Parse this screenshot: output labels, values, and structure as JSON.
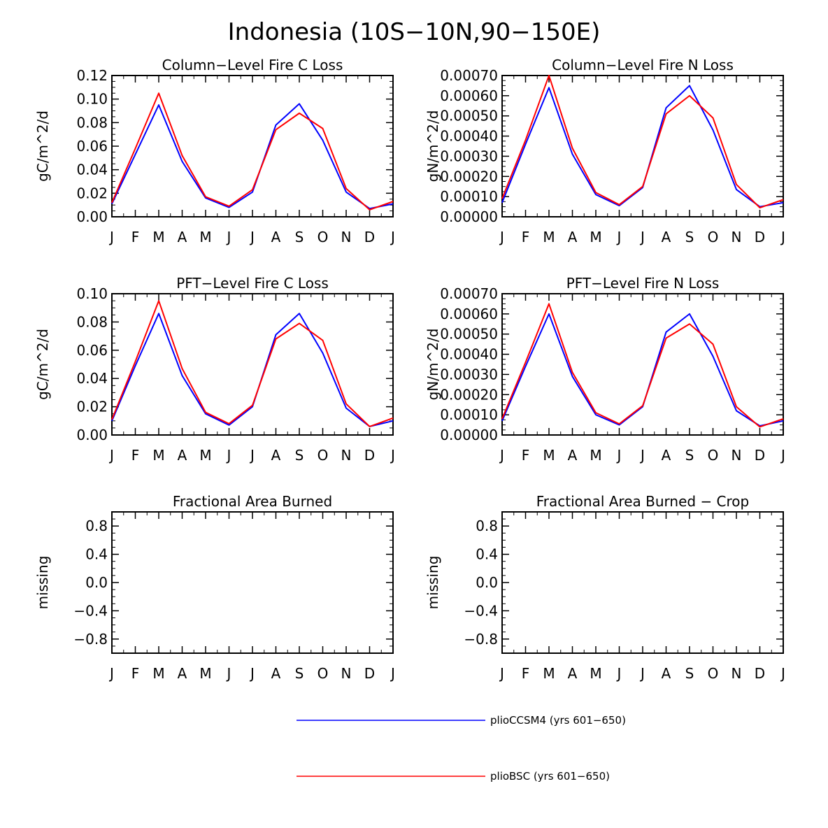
{
  "title": "Indonesia (10S-10N,90-150E)",
  "colors": {
    "series_1": "#0000ff",
    "series_2": "#ff0000",
    "axis": "#000000"
  },
  "legend": [
    {
      "name": "plioCCSM4 (yrs 601-650)",
      "color": "#0000ff"
    },
    {
      "name": "plioBSC (yrs 601-650)",
      "color": "#ff0000"
    }
  ],
  "chart_data": [
    {
      "type": "line",
      "title": "Column-Level Fire C Loss",
      "ylabel": "gC/m^2/d",
      "xlabel": "",
      "categories": [
        "J",
        "F",
        "M",
        "A",
        "M",
        "J",
        "J",
        "A",
        "S",
        "O",
        "N",
        "D",
        "J"
      ],
      "ylim": [
        0,
        0.12
      ],
      "yticks": [
        0,
        0.02,
        0.04,
        0.06,
        0.08,
        0.1,
        0.12
      ],
      "ytick_labels": [
        "0.00",
        "0.02",
        "0.04",
        "0.06",
        "0.08",
        "0.10",
        "0.12"
      ],
      "series": [
        {
          "name": "plioCCSM4 (yrs 601-650)",
          "values": [
            0.011,
            0.053,
            0.095,
            0.047,
            0.016,
            0.008,
            0.021,
            0.078,
            0.096,
            0.065,
            0.021,
            0.007,
            0.011
          ]
        },
        {
          "name": "plioBSC (yrs 601-650)",
          "values": [
            0.012,
            0.058,
            0.105,
            0.052,
            0.017,
            0.009,
            0.023,
            0.074,
            0.088,
            0.075,
            0.024,
            0.006,
            0.013
          ]
        }
      ]
    },
    {
      "type": "line",
      "title": "Column-Level Fire N Loss",
      "ylabel": "gN/m^2/d",
      "xlabel": "",
      "categories": [
        "J",
        "F",
        "M",
        "A",
        "M",
        "J",
        "J",
        "A",
        "S",
        "O",
        "N",
        "D",
        "J"
      ],
      "ylim": [
        0,
        0.0007
      ],
      "yticks": [
        0,
        0.0001,
        0.0002,
        0.0003,
        0.0004,
        0.0005,
        0.0006,
        0.0007
      ],
      "ytick_labels": [
        "0.00000",
        "0.00010",
        "0.00020",
        "0.00030",
        "0.00040",
        "0.00050",
        "0.00060",
        "0.00070"
      ],
      "series": [
        {
          "name": "plioCCSM4 (yrs 601-650)",
          "values": [
            7e-05,
            0.00036,
            0.00064,
            0.00031,
            0.00011,
            5.5e-05,
            0.000145,
            0.00054,
            0.00065,
            0.00043,
            0.000135,
            5e-05,
            7e-05
          ]
        },
        {
          "name": "plioBSC (yrs 601-650)",
          "values": [
            9e-05,
            0.00038,
            0.0007,
            0.00034,
            0.00012,
            6e-05,
            0.00015,
            0.00051,
            0.0006,
            0.00049,
            0.00016,
            4.5e-05,
            8.5e-05
          ]
        }
      ]
    },
    {
      "type": "line",
      "title": "PFT-Level Fire C Loss",
      "ylabel": "gC/m^2/d",
      "xlabel": "",
      "categories": [
        "J",
        "F",
        "M",
        "A",
        "M",
        "J",
        "J",
        "A",
        "S",
        "O",
        "N",
        "D",
        "J"
      ],
      "ylim": [
        0,
        0.1
      ],
      "yticks": [
        0,
        0.02,
        0.04,
        0.06,
        0.08,
        0.1
      ],
      "ytick_labels": [
        "0.00",
        "0.02",
        "0.04",
        "0.06",
        "0.08",
        "0.10"
      ],
      "series": [
        {
          "name": "plioCCSM4 (yrs 601-650)",
          "values": [
            0.01,
            0.049,
            0.086,
            0.042,
            0.015,
            0.007,
            0.02,
            0.071,
            0.086,
            0.058,
            0.019,
            0.006,
            0.01
          ]
        },
        {
          "name": "plioBSC (yrs 601-650)",
          "values": [
            0.011,
            0.052,
            0.095,
            0.047,
            0.016,
            0.008,
            0.021,
            0.068,
            0.079,
            0.067,
            0.022,
            0.006,
            0.012
          ]
        }
      ]
    },
    {
      "type": "line",
      "title": "PFT-Level Fire N Loss",
      "ylabel": "gN/m^2/d",
      "xlabel": "",
      "categories": [
        "J",
        "F",
        "M",
        "A",
        "M",
        "J",
        "J",
        "A",
        "S",
        "O",
        "N",
        "D",
        "J"
      ],
      "ylim": [
        0,
        0.0007
      ],
      "yticks": [
        0,
        0.0001,
        0.0002,
        0.0003,
        0.0004,
        0.0005,
        0.0006,
        0.0007
      ],
      "ytick_labels": [
        "0.00000",
        "0.00010",
        "0.00020",
        "0.00030",
        "0.00040",
        "0.00050",
        "0.00060",
        "0.00070"
      ],
      "series": [
        {
          "name": "plioCCSM4 (yrs 601-650)",
          "values": [
            7e-05,
            0.00034,
            0.0006,
            0.00029,
            0.0001,
            5e-05,
            0.00014,
            0.00051,
            0.0006,
            0.00039,
            0.00012,
            4.5e-05,
            7e-05
          ]
        },
        {
          "name": "plioBSC (yrs 601-650)",
          "values": [
            8e-05,
            0.00036,
            0.00065,
            0.00031,
            0.00011,
            5.5e-05,
            0.000145,
            0.00048,
            0.00055,
            0.00045,
            0.00014,
            4e-05,
            8e-05
          ]
        }
      ]
    },
    {
      "type": "line",
      "title": "Fractional Area Burned",
      "ylabel": "missing",
      "xlabel": "",
      "categories": [
        "J",
        "F",
        "M",
        "A",
        "M",
        "J",
        "J",
        "A",
        "S",
        "O",
        "N",
        "D",
        "J"
      ],
      "ylim": [
        -1,
        1
      ],
      "yticks": [
        -0.8,
        -0.4,
        0.0,
        0.4,
        0.8
      ],
      "ytick_labels": [
        "-0.8",
        "-0.4",
        "0.0",
        "0.4",
        "0.8"
      ],
      "series": []
    },
    {
      "type": "line",
      "title": "Fractional Area Burned - Crop",
      "ylabel": "missing",
      "xlabel": "",
      "categories": [
        "J",
        "F",
        "M",
        "A",
        "M",
        "J",
        "J",
        "A",
        "S",
        "O",
        "N",
        "D",
        "J"
      ],
      "ylim": [
        -1,
        1
      ],
      "yticks": [
        -0.8,
        -0.4,
        0.0,
        0.4,
        0.8
      ],
      "ytick_labels": [
        "-0.8",
        "-0.4",
        "0.0",
        "0.4",
        "0.8"
      ],
      "series": []
    }
  ]
}
